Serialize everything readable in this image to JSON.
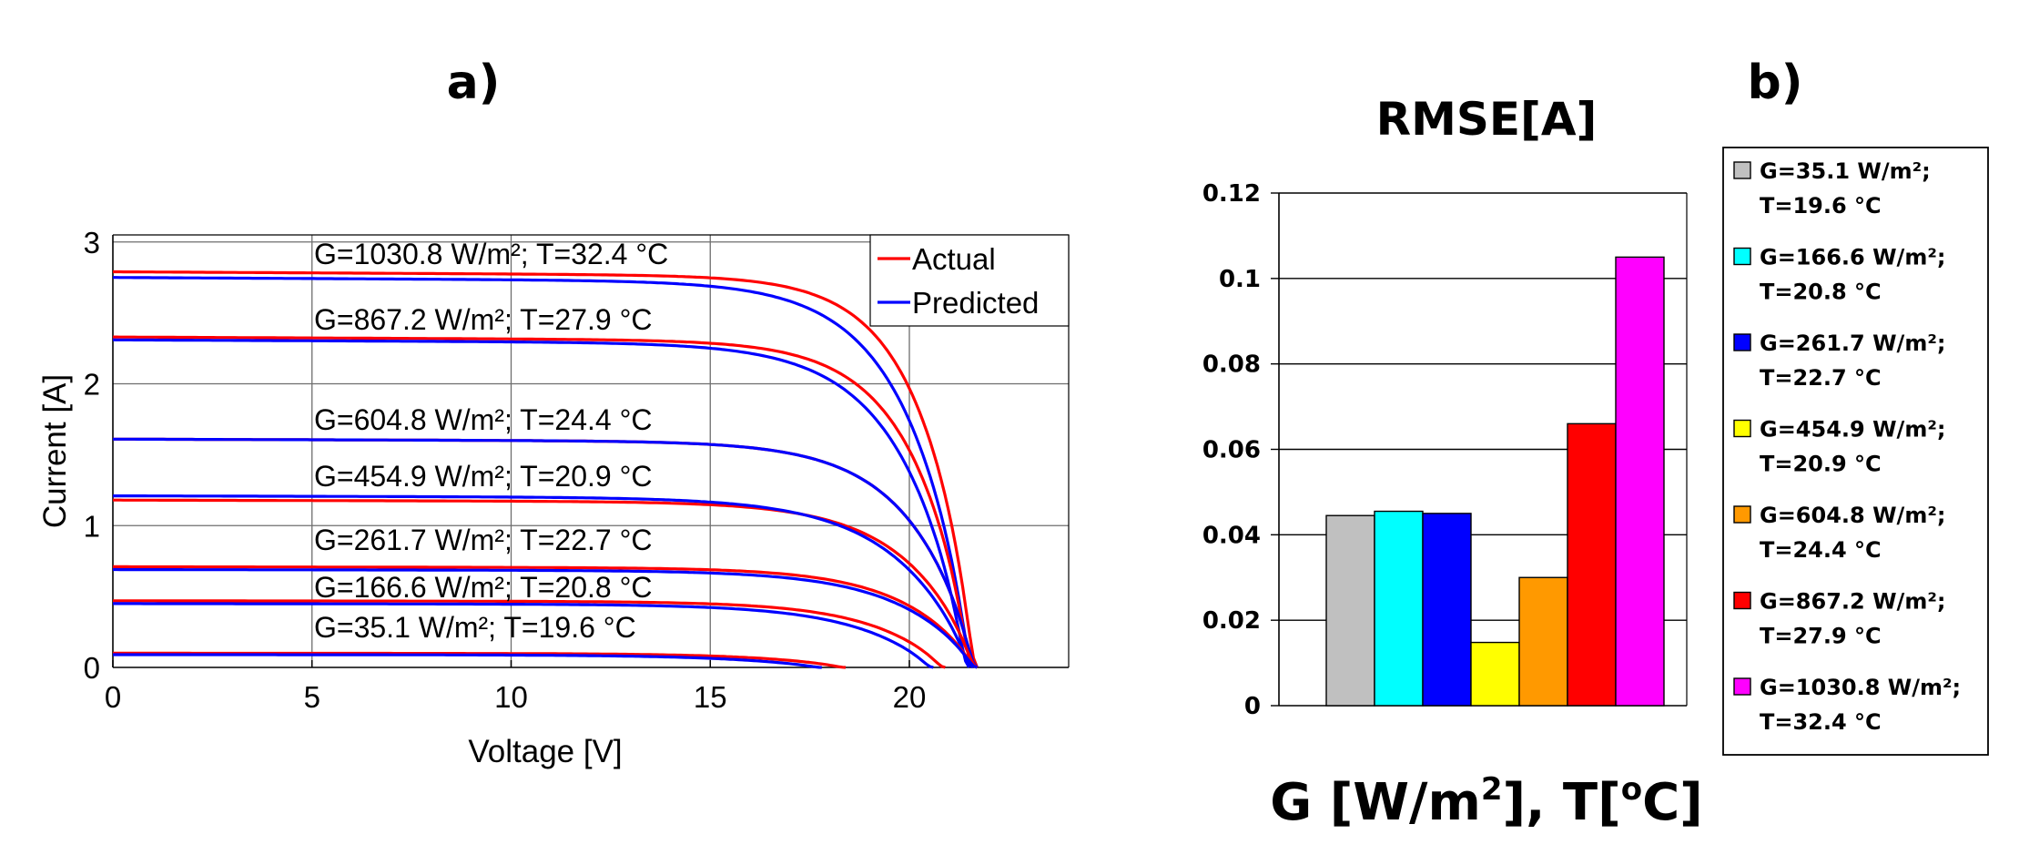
{
  "panel_a_label": "a)",
  "panel_b_label": "b)",
  "chart_data": [
    {
      "type": "line",
      "title": "",
      "xlabel": "Voltage [V]",
      "ylabel": "Current [A]",
      "xlim": [
        0,
        24
      ],
      "ylim": [
        0,
        3.05
      ],
      "xticks": [
        0,
        5,
        10,
        15,
        20
      ],
      "yticks": [
        0,
        1,
        2,
        3
      ],
      "grid": true,
      "legend": {
        "position": "top-right",
        "entries": [
          {
            "name": "Actual",
            "color": "#ff0000"
          },
          {
            "name": "Predicted",
            "color": "#0000ff"
          }
        ]
      },
      "curves": [
        {
          "label": "G=1030.8 W/m²; T=32.4 °C",
          "actual": {
            "isc": 2.79,
            "voc": 21.7,
            "a": 1.35
          },
          "predicted": {
            "isc": 2.75,
            "voc": 21.6,
            "a": 1.55
          }
        },
        {
          "label": "G=867.2 W/m²; T=27.9 °C",
          "actual": {
            "isc": 2.33,
            "voc": 21.6,
            "a": 1.45
          },
          "predicted": {
            "isc": 2.31,
            "voc": 21.5,
            "a": 1.6
          }
        },
        {
          "label": "G=604.8 W/m²; T=24.4 °C",
          "actual": {
            "isc": 1.61,
            "voc": 21.7,
            "a": 1.6
          },
          "predicted": {
            "isc": 1.61,
            "voc": 21.7,
            "a": 1.6
          }
        },
        {
          "label": "G=454.9 W/m²; T=20.9 °C",
          "actual": {
            "isc": 1.18,
            "voc": 21.7,
            "a": 1.7
          },
          "predicted": {
            "isc": 1.21,
            "voc": 21.6,
            "a": 1.85
          }
        },
        {
          "label": "G=261.7 W/m²; T=22.7 °C",
          "actual": {
            "isc": 0.71,
            "voc": 21.7,
            "a": 1.75
          },
          "predicted": {
            "isc": 0.69,
            "voc": 21.7,
            "a": 1.85
          }
        },
        {
          "label": "G=166.6 W/m²; T=20.8 °C",
          "actual": {
            "isc": 0.47,
            "voc": 20.9,
            "a": 1.8
          },
          "predicted": {
            "isc": 0.45,
            "voc": 20.6,
            "a": 1.9
          }
        },
        {
          "label": "G=35.1 W/m²; T=19.6 °C",
          "actual": {
            "isc": 0.1,
            "voc": 18.4,
            "a": 2.0
          },
          "predicted": {
            "isc": 0.09,
            "voc": 17.8,
            "a": 2.2
          }
        }
      ]
    },
    {
      "type": "bar",
      "title": "RMSE[A]",
      "xlabel_main": "G [W/m",
      "xlabel_sup1": "2",
      "xlabel_mid": "], T[",
      "xlabel_sup2": "o",
      "xlabel_end": "C]",
      "ylim": [
        0,
        0.12
      ],
      "yticks": [
        "0",
        "0.02",
        "0.04",
        "0.06",
        "0.08",
        "0.1",
        "0.12"
      ],
      "grid": true,
      "legend_position": "right",
      "series": [
        {
          "line1": "G=35.1 W/m²;",
          "line2": "T=19.6 °C",
          "value": 0.0445,
          "color": "#c0c0c0"
        },
        {
          "line1": "G=166.6 W/m²;",
          "line2": "T=20.8 °C",
          "value": 0.0455,
          "color": "#00ffff"
        },
        {
          "line1": "G=261.7 W/m²;",
          "line2": "T=22.7 °C",
          "value": 0.045,
          "color": "#0000ff"
        },
        {
          "line1": "G=454.9 W/m²;",
          "line2": "T=20.9 °C",
          "value": 0.0148,
          "color": "#ffff00"
        },
        {
          "line1": "G=604.8 W/m²;",
          "line2": "T=24.4 °C",
          "value": 0.03,
          "color": "#ff9900"
        },
        {
          "line1": "G=867.2 W/m²;",
          "line2": "T=27.9 °C",
          "value": 0.066,
          "color": "#ff0000"
        },
        {
          "line1": "G=1030.8 W/m²;",
          "line2": "T=32.4 °C",
          "value": 0.105,
          "color": "#ff00ff"
        }
      ]
    }
  ]
}
